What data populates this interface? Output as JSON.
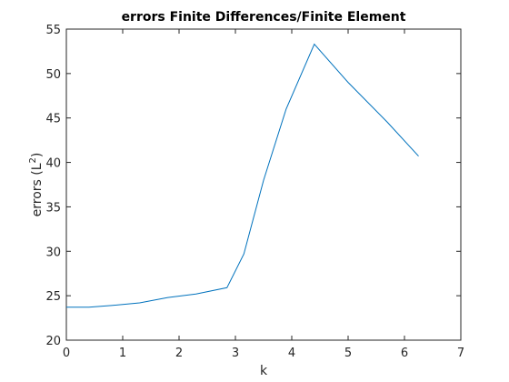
{
  "chart_data": {
    "type": "line",
    "title": "errors Finite Differences/Finite Element",
    "xlabel": "k",
    "ylabel": "errors (L",
    "ylabel_sup": "2",
    "ylabel_close": ")",
    "xlim": [
      0,
      7
    ],
    "ylim": [
      20,
      55
    ],
    "xticks": [
      0,
      1,
      2,
      3,
      4,
      5,
      6,
      7
    ],
    "yticks": [
      20,
      25,
      30,
      35,
      40,
      45,
      50,
      55
    ],
    "grid": false,
    "series_color": "#0072bd",
    "series": [
      {
        "x": [
          0,
          0.4,
          0.8,
          1.3,
          1.8,
          2.3,
          2.85,
          3.15,
          3.5,
          3.9,
          4.4,
          5.0,
          5.7,
          6.25
        ],
        "values": [
          23.7,
          23.7,
          23.9,
          24.2,
          24.8,
          25.2,
          25.9,
          29.7,
          38.0,
          46.0,
          53.3,
          49.0,
          44.5,
          40.7
        ]
      }
    ]
  }
}
